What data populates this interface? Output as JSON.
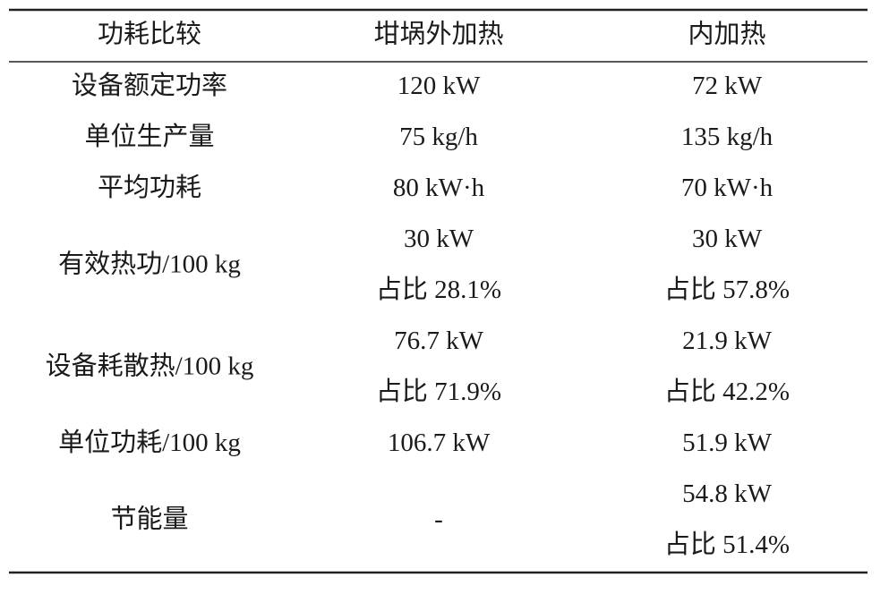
{
  "table": {
    "header": [
      "功耗比较",
      "坩埚外加热",
      "内加热"
    ],
    "rows": [
      {
        "label": "设备额定功率",
        "outer": [
          "120 kW"
        ],
        "inner": [
          "72 kW"
        ]
      },
      {
        "label": "单位生产量",
        "outer": [
          "75 kg/h"
        ],
        "inner": [
          "135 kg/h"
        ]
      },
      {
        "label": "平均功耗",
        "outer": [
          "80 kW·h"
        ],
        "inner": [
          "70 kW·h"
        ]
      },
      {
        "label": "有效热功/100 kg",
        "outer": [
          "30 kW",
          "占比 28.1%"
        ],
        "inner": [
          "30 kW",
          "占比 57.8%"
        ]
      },
      {
        "label": "设备耗散热/100 kg",
        "outer": [
          "76.7 kW",
          "占比 71.9%"
        ],
        "inner": [
          "21.9 kW",
          "占比 42.2%"
        ]
      },
      {
        "label": "单位功耗/100 kg",
        "outer": [
          "106.7 kW"
        ],
        "inner": [
          "51.9 kW"
        ]
      },
      {
        "label": "节能量",
        "outer": [
          "-"
        ],
        "inner": [
          "54.8 kW",
          "占比 51.4%"
        ]
      }
    ]
  }
}
